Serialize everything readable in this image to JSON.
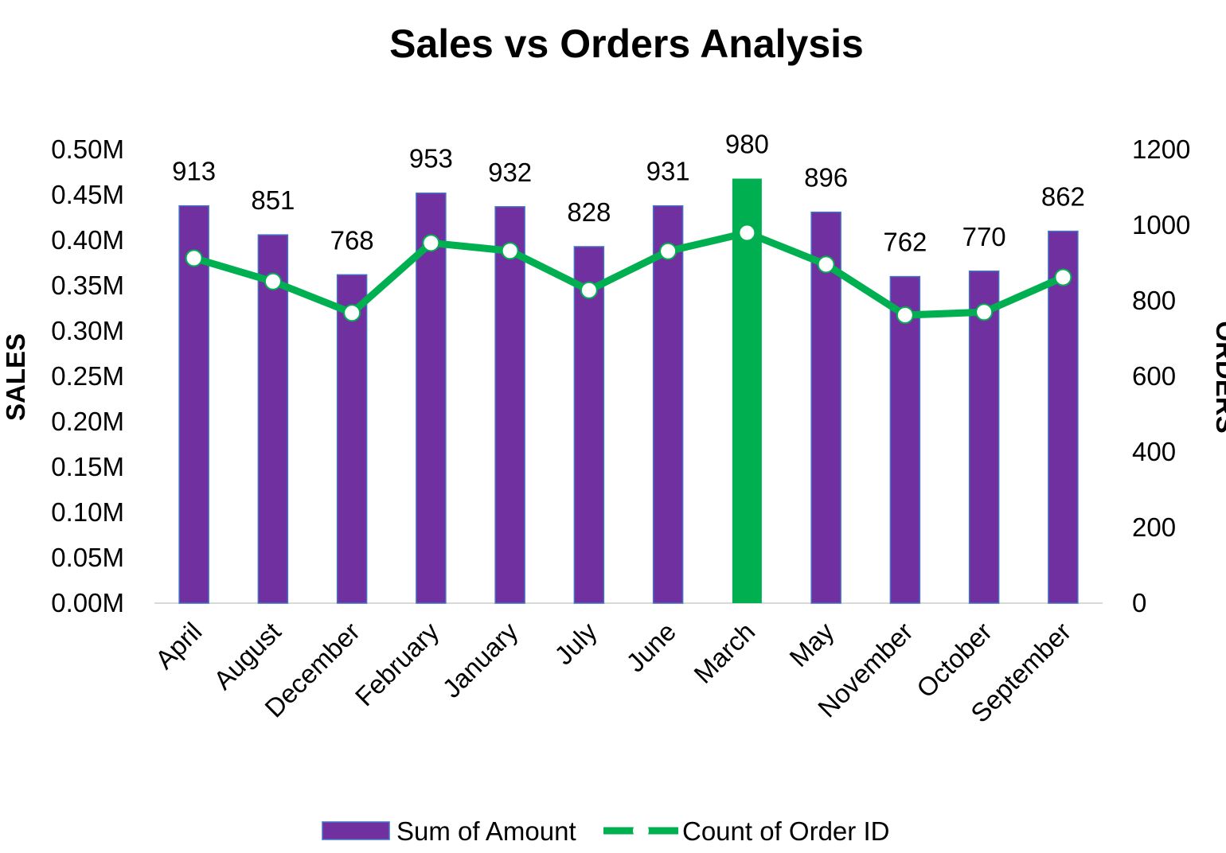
{
  "chart_data": {
    "type": "bar",
    "title": "Sales vs Orders Analysis",
    "categories": [
      "April",
      "August",
      "December",
      "February",
      "January",
      "July",
      "June",
      "March",
      "May",
      "November",
      "October",
      "September"
    ],
    "series": [
      {
        "name": "Sum of Amount",
        "type": "bar",
        "axis": "left",
        "color": "#7030A0",
        "highlight_color": "#00B050",
        "highlight_category": "March",
        "values": [
          0.438,
          0.406,
          0.362,
          0.452,
          0.437,
          0.393,
          0.438,
          0.468,
          0.431,
          0.36,
          0.366,
          0.41
        ]
      },
      {
        "name": "Count of Order ID",
        "type": "line",
        "axis": "right",
        "color": "#00B050",
        "marker_color": "#ffffff",
        "values": [
          913,
          851,
          768,
          953,
          932,
          828,
          931,
          980,
          896,
          762,
          770,
          862
        ]
      }
    ],
    "y_left": {
      "label": "SALES",
      "min": 0,
      "max": 0.5,
      "ticks": [
        "0.00M",
        "0.05M",
        "0.10M",
        "0.15M",
        "0.20M",
        "0.25M",
        "0.30M",
        "0.35M",
        "0.40M",
        "0.45M",
        "0.50M"
      ]
    },
    "y_right": {
      "label": "ORDERS",
      "min": 0,
      "max": 1200,
      "ticks": [
        "0",
        "200",
        "400",
        "600",
        "800",
        "1000",
        "1200"
      ]
    },
    "legend": {
      "position": "bottom",
      "entries": [
        "Sum of Amount",
        "Count of Order ID"
      ]
    },
    "grid": false
  }
}
